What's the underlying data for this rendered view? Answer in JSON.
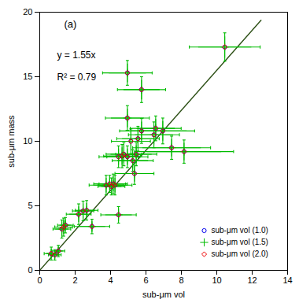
{
  "chart_data": {
    "type": "scatter",
    "title": "(a)",
    "xlabel": "sub-μm vol",
    "ylabel": "sub-μm mass",
    "xlim": [
      0,
      14
    ],
    "ylim": [
      0,
      20
    ],
    "xticks": [
      0,
      2,
      4,
      6,
      8,
      10,
      12,
      14
    ],
    "yticks": [
      0,
      5,
      10,
      15,
      20
    ],
    "grid": false,
    "legend": "lower right",
    "annotations": [
      "y = 1.55x",
      "R² = 0.79"
    ],
    "series": [
      {
        "type": "line",
        "color": "#2d5016",
        "x": [
          0,
          12.5
        ],
        "values": [
          0,
          19.375
        ]
      },
      {
        "type": "errorbar",
        "color": "#00bb00",
        "x": [
          0.65,
          0.85,
          1.05,
          1.25,
          1.35,
          1.45,
          2.2,
          2.45,
          2.65,
          2.95,
          3.75,
          3.95,
          4.05,
          4.15,
          4.25,
          4.45,
          4.45,
          4.65,
          4.75,
          4.95,
          4.95,
          5.15,
          5.25,
          5.35,
          5.45,
          5.55,
          5.75,
          4.95,
          5.75,
          6.45,
          6.55,
          6.95,
          7.45,
          8.15,
          10.45
        ],
        "values": [
          1.3,
          1.2,
          1.5,
          3.2,
          3.35,
          3.5,
          4.35,
          4.6,
          4.65,
          3.4,
          6.6,
          6.7,
          6.5,
          6.7,
          6.6,
          4.3,
          8.8,
          8.85,
          9.0,
          8.8,
          11.8,
          10.0,
          8.5,
          7.5,
          9.0,
          10.2,
          10.8,
          15.3,
          14.0,
          10.5,
          11.0,
          10.8,
          9.5,
          9.2,
          17.3
        ],
        "xerr": [
          0.4,
          0.36,
          0.36,
          0.5,
          0.5,
          0.44,
          0.7,
          0.6,
          0.64,
          1.0,
          0.96,
          0.9,
          0.76,
          0.8,
          0.96,
          1.0,
          1.1,
          1.04,
          1.0,
          1.16,
          1.24,
          1.1,
          1.16,
          1.1,
          1.16,
          1.2,
          1.24,
          1.4,
          1.36,
          1.44,
          1.44,
          1.8,
          2.2,
          2.8,
          2.0
        ],
        "yerr": [
          0.5,
          0.4,
          0.44,
          0.7,
          0.7,
          0.6,
          0.8,
          0.76,
          0.76,
          0.56,
          0.76,
          0.66,
          0.66,
          0.76,
          0.76,
          0.64,
          0.84,
          0.9,
          0.9,
          0.84,
          0.96,
          0.96,
          0.84,
          0.84,
          0.9,
          0.96,
          0.96,
          0.96,
          1.0,
          1.0,
          0.96,
          1.0,
          0.9,
          0.9,
          1.1
        ]
      },
      {
        "type": "errorbar",
        "color": "#00bb00",
        "x": [
          0.65,
          0.85,
          1.05,
          1.25,
          1.35,
          1.45,
          2.2,
          2.45,
          2.65,
          2.95,
          3.75,
          3.95,
          4.05,
          4.15,
          4.25,
          4.45,
          4.45,
          4.65,
          4.75,
          4.95,
          4.95,
          5.15,
          5.25,
          5.35,
          5.45,
          5.55,
          5.75,
          4.95,
          5.75,
          6.45,
          6.55,
          6.95,
          7.45,
          8.15,
          10.45
        ],
        "values": [
          1.3,
          1.2,
          1.5,
          3.2,
          3.35,
          3.5,
          4.35,
          4.6,
          4.65,
          3.4,
          6.6,
          6.7,
          6.5,
          6.7,
          6.6,
          4.3,
          8.8,
          8.85,
          9.0,
          8.8,
          11.8,
          10.0,
          8.5,
          7.5,
          9.0,
          10.2,
          10.8,
          15.3,
          14.0,
          10.5,
          11.0,
          10.8,
          9.5,
          9.2,
          17.3
        ],
        "xerr": [
          0.3,
          0.27,
          0.27,
          0.375,
          0.375,
          0.33,
          0.525,
          0.45,
          0.48,
          0.75,
          0.72,
          0.675,
          0.57,
          0.6,
          0.72,
          0.75,
          0.825,
          0.78,
          0.75,
          0.87,
          0.93,
          0.825,
          0.87,
          0.825,
          0.87,
          0.9,
          0.93,
          1.05,
          1.02,
          1.08,
          1.08,
          1.35,
          1.65,
          2.1,
          1.5
        ],
        "yerr": [
          0.375,
          0.3,
          0.33,
          0.525,
          0.525,
          0.45,
          0.6,
          0.57,
          0.57,
          0.42,
          0.57,
          0.495,
          0.495,
          0.57,
          0.57,
          0.48,
          0.63,
          0.675,
          0.675,
          0.63,
          0.72,
          0.72,
          0.63,
          0.63,
          0.675,
          0.72,
          0.72,
          0.72,
          0.75,
          0.75,
          0.72,
          0.75,
          0.675,
          0.675,
          0.825
        ]
      },
      {
        "name": "sub-μm vol (1.0)",
        "type": "scatter",
        "color": "#0000ee",
        "marker": "circle",
        "x": [
          0.65,
          0.85,
          1.05,
          1.25,
          1.35,
          1.45,
          2.2,
          2.45,
          2.65,
          2.95,
          3.75,
          3.95,
          4.05,
          4.15,
          4.25,
          4.45,
          4.45,
          4.65,
          4.75,
          4.95,
          4.95,
          5.15,
          5.25,
          5.35,
          5.45,
          5.55,
          5.75,
          4.95,
          5.75,
          6.45,
          6.55,
          6.95,
          7.45,
          8.15,
          10.45
        ],
        "values": [
          1.3,
          1.2,
          1.5,
          3.2,
          3.35,
          3.5,
          4.35,
          4.6,
          4.65,
          3.4,
          6.6,
          6.7,
          6.5,
          6.7,
          6.6,
          4.3,
          8.8,
          8.85,
          9.0,
          8.8,
          11.8,
          10.0,
          8.5,
          7.5,
          9.0,
          10.2,
          10.8,
          15.3,
          14.0,
          10.5,
          11.0,
          10.8,
          9.5,
          9.2,
          17.3
        ]
      },
      {
        "name": "sub-μm vol (1.5)",
        "type": "scatter",
        "color": "#00bb00",
        "marker": "plus",
        "x": [
          0.65,
          0.85,
          1.05,
          1.25,
          1.35,
          1.45,
          2.2,
          2.45,
          2.65,
          2.95,
          3.75,
          3.95,
          4.05,
          4.15,
          4.25,
          4.45,
          4.45,
          4.65,
          4.75,
          4.95,
          4.95,
          5.15,
          5.25,
          5.35,
          5.45,
          5.55,
          5.75,
          4.95,
          5.75,
          6.45,
          6.55,
          6.95,
          7.45,
          8.15,
          10.45
        ],
        "values": [
          1.3,
          1.2,
          1.5,
          3.2,
          3.35,
          3.5,
          4.35,
          4.6,
          4.65,
          3.4,
          6.6,
          6.7,
          6.5,
          6.7,
          6.6,
          4.3,
          8.8,
          8.85,
          9.0,
          8.8,
          11.8,
          10.0,
          8.5,
          7.5,
          9.0,
          10.2,
          10.8,
          15.3,
          14.0,
          10.5,
          11.0,
          10.8,
          9.5,
          9.2,
          17.3
        ]
      },
      {
        "name": "sub-μm vol (2.0)",
        "type": "scatter",
        "color": "#ee0000",
        "marker": "diamond",
        "x": [
          0.65,
          0.85,
          1.05,
          1.25,
          1.35,
          1.45,
          2.2,
          2.45,
          2.65,
          2.95,
          3.75,
          3.95,
          4.05,
          4.15,
          4.25,
          4.45,
          4.45,
          4.65,
          4.75,
          4.95,
          4.95,
          5.15,
          5.25,
          5.35,
          5.45,
          5.55,
          5.75,
          4.95,
          5.75,
          6.45,
          6.55,
          6.95,
          7.45,
          8.15,
          10.45
        ],
        "values": [
          1.3,
          1.2,
          1.5,
          3.2,
          3.35,
          3.5,
          4.35,
          4.6,
          4.65,
          3.4,
          6.6,
          6.7,
          6.5,
          6.7,
          6.6,
          4.3,
          8.8,
          8.85,
          9.0,
          8.8,
          11.8,
          10.0,
          8.5,
          7.5,
          9.0,
          10.2,
          10.8,
          15.3,
          14.0,
          10.5,
          11.0,
          10.8,
          9.5,
          9.2,
          17.3
        ]
      }
    ]
  }
}
